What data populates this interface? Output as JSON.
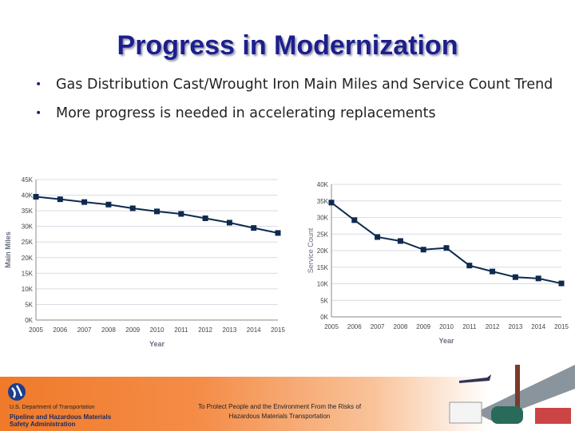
{
  "title": "Progress in Modernization",
  "bullets": [
    "Gas Distribution Cast/Wrought Iron Main Miles and Service Count Trend",
    "More progress is needed in accelerating replacements"
  ],
  "chart_data": [
    {
      "type": "line",
      "xlabel": "Year",
      "ylabel": "Main Miles",
      "x": [
        "2005",
        "2006",
        "2007",
        "2008",
        "2009",
        "2010",
        "2011",
        "2012",
        "2013",
        "2014",
        "2015"
      ],
      "values": [
        39500,
        38700,
        37800,
        37000,
        35800,
        34800,
        34000,
        32600,
        31200,
        29500,
        27900
      ],
      "ylim": [
        0,
        45000
      ],
      "yticks": [
        "0K",
        "5K",
        "10K",
        "15K",
        "20K",
        "25K",
        "30K",
        "35K",
        "40K",
        "45K"
      ],
      "grid": true,
      "color": "#0e2a4e"
    },
    {
      "type": "line",
      "xlabel": "Year",
      "ylabel": "Service Count",
      "x": [
        "2005",
        "2006",
        "2007",
        "2008",
        "2009",
        "2010",
        "2011",
        "2012",
        "2013",
        "2014",
        "2015"
      ],
      "values": [
        34500,
        29200,
        24100,
        22900,
        20300,
        20800,
        15500,
        13700,
        12000,
        11600,
        10100
      ],
      "ylim": [
        0,
        40000
      ],
      "yticks": [
        "0K",
        "5K",
        "10K",
        "15K",
        "20K",
        "25K",
        "30K",
        "35K",
        "40K"
      ],
      "grid": true,
      "color": "#0e2a4e"
    }
  ],
  "footer": {
    "dept": "U.S. Department of Transportation",
    "agency_line1": "Pipeline and Hazardous Materials",
    "agency_line2": "Safety Administration",
    "mission_line1": "To Protect People and the Environment From the Risks of",
    "mission_line2": "Hazardous Materials Transportation",
    "accent": "#f07a2a"
  }
}
